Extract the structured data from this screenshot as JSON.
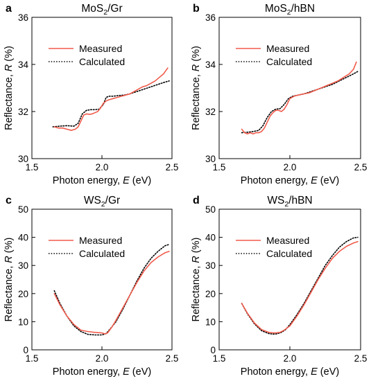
{
  "chart_data": [
    {
      "type": "line",
      "letter": "a",
      "title_main": "MoS",
      "title_sub": "2",
      "title_rest": "/Gr",
      "xlabel_main": "Photon energy, ",
      "xlabel_var": "E",
      "xlabel_unit": " (eV)",
      "ylabel_main": "Reflectance, ",
      "ylabel_var": "R",
      "ylabel_unit": " (%)",
      "xlim": [
        1.5,
        2.5
      ],
      "ylim": [
        30,
        36
      ],
      "xticks": [
        1.5,
        2.0,
        2.5
      ],
      "xtick_labels": [
        "1.5",
        "2.0",
        "2.5"
      ],
      "yticks": [
        30,
        32,
        34,
        36
      ],
      "ytick_labels": [
        "30",
        "32",
        "34",
        "36"
      ],
      "grid": false,
      "legend": "upper-left",
      "series": [
        {
          "name": "Measured",
          "color": "#f05a4a",
          "style": "solid",
          "x": [
            1.66,
            1.69,
            1.72,
            1.75,
            1.78,
            1.81,
            1.83,
            1.85,
            1.87,
            1.89,
            1.91,
            1.93,
            1.95,
            1.97,
            1.99,
            2.01,
            2.03,
            2.05,
            2.08,
            2.11,
            2.14,
            2.17,
            2.2,
            2.23,
            2.26,
            2.29,
            2.32,
            2.35,
            2.38,
            2.41,
            2.44,
            2.47
          ],
          "y": [
            31.35,
            31.3,
            31.3,
            31.25,
            31.2,
            31.25,
            31.35,
            31.6,
            31.85,
            31.9,
            31.88,
            31.9,
            31.95,
            32.0,
            32.15,
            32.35,
            32.45,
            32.5,
            32.55,
            32.6,
            32.65,
            32.7,
            32.75,
            32.85,
            32.95,
            33.05,
            33.1,
            33.2,
            33.3,
            33.45,
            33.6,
            33.85
          ]
        },
        {
          "name": "Calculated",
          "color": "#000000",
          "style": "dotted",
          "x": [
            1.65,
            1.7,
            1.75,
            1.8,
            1.83,
            1.86,
            1.89,
            1.92,
            1.95,
            1.98,
            2.01,
            2.03,
            2.05,
            2.08,
            2.12,
            2.16,
            2.2,
            2.25,
            2.3,
            2.35,
            2.4,
            2.45,
            2.48
          ],
          "y": [
            31.35,
            31.38,
            31.4,
            31.38,
            31.5,
            31.9,
            32.05,
            32.08,
            32.08,
            32.1,
            32.3,
            32.6,
            32.65,
            32.65,
            32.68,
            32.7,
            32.75,
            32.85,
            32.95,
            33.05,
            33.15,
            33.25,
            33.3
          ]
        }
      ]
    },
    {
      "type": "line",
      "letter": "b",
      "title_main": "MoS",
      "title_sub": "2",
      "title_rest": "/hBN",
      "xlabel_main": "Photon energy, ",
      "xlabel_var": "E",
      "xlabel_unit": " (eV)",
      "ylabel_main": "Reflectance, ",
      "ylabel_var": "R",
      "ylabel_unit": " (%)",
      "xlim": [
        1.5,
        2.5
      ],
      "ylim": [
        30,
        36
      ],
      "xticks": [
        1.5,
        2.0,
        2.5
      ],
      "xtick_labels": [
        "1.5",
        "2.0",
        "2.5"
      ],
      "yticks": [
        30,
        32,
        34,
        36
      ],
      "ytick_labels": [
        "30",
        "32",
        "34",
        "36"
      ],
      "grid": false,
      "legend": "upper-left",
      "series": [
        {
          "name": "Measured",
          "color": "#f05a4a",
          "style": "solid",
          "x": [
            1.66,
            1.68,
            1.7,
            1.72,
            1.74,
            1.76,
            1.78,
            1.8,
            1.82,
            1.84,
            1.86,
            1.88,
            1.9,
            1.92,
            1.94,
            1.96,
            1.98,
            2.0,
            2.03,
            2.06,
            2.1,
            2.14,
            2.18,
            2.22,
            2.26,
            2.3,
            2.34,
            2.38,
            2.42,
            2.45,
            2.47
          ],
          "y": [
            31.25,
            31.1,
            31.05,
            31.1,
            31.05,
            31.1,
            31.1,
            31.15,
            31.3,
            31.55,
            31.8,
            31.95,
            32.05,
            32.05,
            32.0,
            32.1,
            32.3,
            32.55,
            32.65,
            32.7,
            32.75,
            32.8,
            32.9,
            33.0,
            33.1,
            33.2,
            33.3,
            33.45,
            33.6,
            33.8,
            34.1
          ]
        },
        {
          "name": "Calculated",
          "color": "#000000",
          "style": "dotted",
          "x": [
            1.66,
            1.7,
            1.74,
            1.78,
            1.81,
            1.84,
            1.87,
            1.9,
            1.93,
            1.96,
            1.99,
            2.02,
            2.06,
            2.1,
            2.15,
            2.2,
            2.25,
            2.3,
            2.35,
            2.4,
            2.45,
            2.48
          ],
          "y": [
            31.1,
            31.12,
            31.15,
            31.2,
            31.4,
            31.75,
            32.0,
            32.1,
            32.12,
            32.3,
            32.55,
            32.65,
            32.7,
            32.75,
            32.85,
            32.95,
            33.05,
            33.15,
            33.3,
            33.45,
            33.6,
            33.7
          ]
        }
      ]
    },
    {
      "type": "line",
      "letter": "c",
      "title_main": "WS",
      "title_sub": "2",
      "title_rest": "/Gr",
      "xlabel_main": "Photon energy, ",
      "xlabel_var": "E",
      "xlabel_unit": " (eV)",
      "ylabel_main": "Reflectance, ",
      "ylabel_var": "R",
      "ylabel_unit": " (%)",
      "xlim": [
        1.5,
        2.5
      ],
      "ylim": [
        0,
        50
      ],
      "xticks": [
        1.5,
        2.0,
        2.5
      ],
      "xtick_labels": [
        "1.5",
        "2.0",
        "2.5"
      ],
      "yticks": [
        0,
        10,
        20,
        30,
        40,
        50
      ],
      "ytick_labels": [
        "0",
        "10",
        "20",
        "30",
        "40",
        "50"
      ],
      "grid": false,
      "legend": "upper-left",
      "series": [
        {
          "name": "Measured",
          "color": "#f05a4a",
          "style": "solid",
          "x": [
            1.66,
            1.7,
            1.75,
            1.8,
            1.85,
            1.9,
            1.95,
            2.0,
            2.02,
            2.04,
            2.07,
            2.1,
            2.15,
            2.2,
            2.25,
            2.3,
            2.35,
            2.4,
            2.45,
            2.48
          ],
          "y": [
            20,
            16,
            12,
            9,
            7,
            6.5,
            6.2,
            6,
            5.7,
            6,
            8,
            10.5,
            15,
            19.5,
            24,
            28,
            31,
            33,
            34.5,
            35
          ]
        },
        {
          "name": "Calculated",
          "color": "#000000",
          "style": "dotted",
          "x": [
            1.66,
            1.7,
            1.75,
            1.8,
            1.85,
            1.9,
            1.95,
            2.0,
            2.03,
            2.06,
            2.1,
            2.15,
            2.2,
            2.25,
            2.3,
            2.35,
            2.4,
            2.45,
            2.48
          ],
          "y": [
            21,
            16.5,
            12,
            8.5,
            6.5,
            5.5,
            5.3,
            5.3,
            5.8,
            7.5,
            10,
            14.5,
            19.5,
            24.5,
            29,
            32.5,
            35,
            37,
            37.5
          ]
        }
      ]
    },
    {
      "type": "line",
      "letter": "d",
      "title_main": "WS",
      "title_sub": "2",
      "title_rest": "/hBN",
      "xlabel_main": "Photon energy, ",
      "xlabel_var": "E",
      "xlabel_unit": " (eV)",
      "ylabel_main": "Reflectance, ",
      "ylabel_var": "R",
      "ylabel_unit": " (%)",
      "xlim": [
        1.5,
        2.5
      ],
      "ylim": [
        0,
        50
      ],
      "xticks": [
        1.5,
        2.0,
        2.5
      ],
      "xtick_labels": [
        "1.5",
        "2.0",
        "2.5"
      ],
      "yticks": [
        0,
        10,
        20,
        30,
        40,
        50
      ],
      "ytick_labels": [
        "0",
        "10",
        "20",
        "30",
        "40",
        "50"
      ],
      "grid": false,
      "legend": "upper-left",
      "series": [
        {
          "name": "Measured",
          "color": "#f05a4a",
          "style": "solid",
          "x": [
            1.66,
            1.7,
            1.75,
            1.8,
            1.85,
            1.88,
            1.9,
            1.93,
            1.96,
            2.0,
            2.05,
            2.1,
            2.15,
            2.2,
            2.25,
            2.3,
            2.35,
            2.4,
            2.45,
            2.48
          ],
          "y": [
            16.5,
            13,
            9.5,
            7.2,
            6.2,
            6.0,
            6.0,
            6.2,
            7,
            8.5,
            12,
            16,
            20.5,
            25,
            29,
            32.5,
            35,
            36.8,
            38,
            38.5
          ]
        },
        {
          "name": "Calculated",
          "color": "#000000",
          "style": "dotted",
          "x": [
            1.66,
            1.7,
            1.75,
            1.8,
            1.85,
            1.88,
            1.91,
            1.94,
            1.97,
            2.0,
            2.05,
            2.1,
            2.15,
            2.2,
            2.25,
            2.3,
            2.35,
            2.4,
            2.45,
            2.48
          ],
          "y": [
            16.5,
            12.8,
            9.2,
            6.8,
            5.8,
            5.6,
            5.7,
            6.2,
            7.2,
            9,
            12.5,
            16.5,
            21,
            25.5,
            30,
            33.5,
            36.5,
            38.5,
            39.8,
            40
          ]
        }
      ]
    }
  ]
}
